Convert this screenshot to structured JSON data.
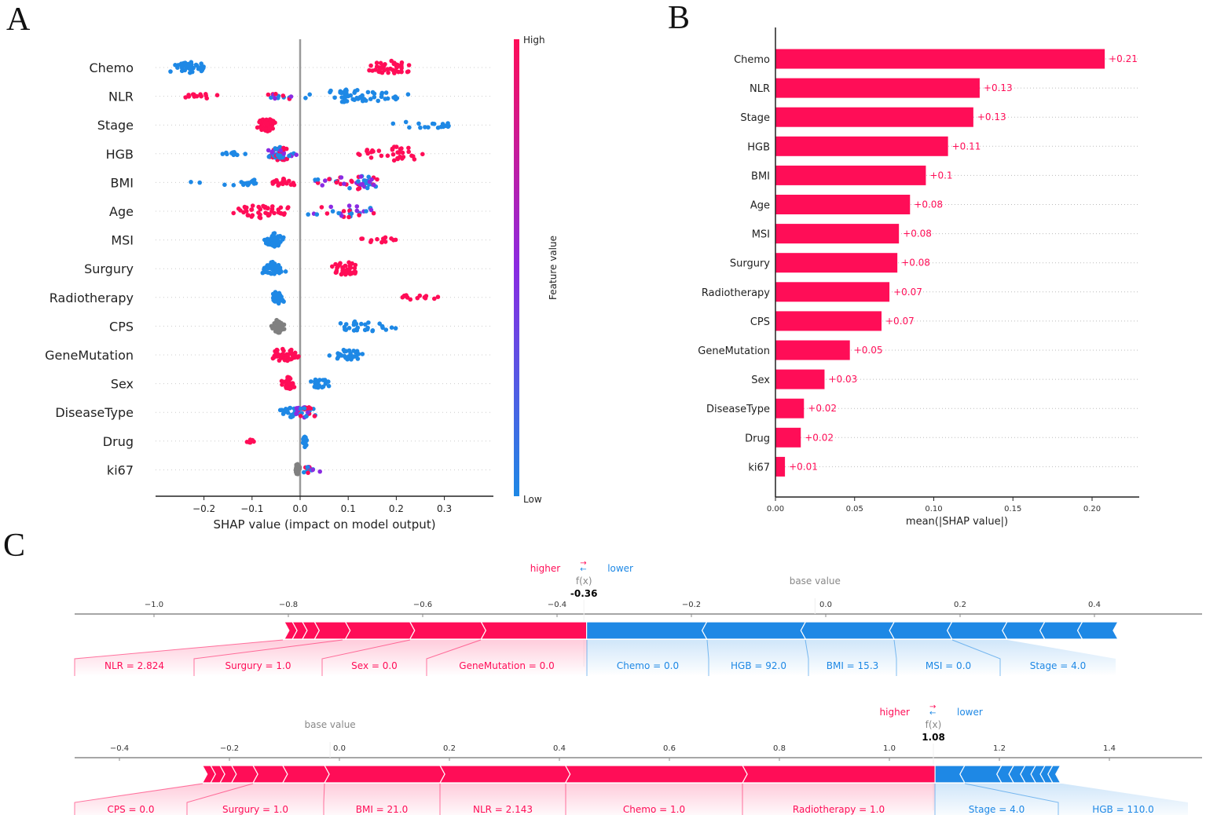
{
  "panels": {
    "a": "A",
    "b": "B",
    "c": "C"
  },
  "colors": {
    "high": "#ff0d57",
    "low": "#1e88e5",
    "mid": "#8a2be2",
    "neutral": "#808080"
  },
  "chart_data": [
    {
      "type": "scatter",
      "subtype": "shap-beeswarm",
      "xlabel": "SHAP value (impact on model output)",
      "xticks": [
        "−0.2",
        "−0.1",
        "0.0",
        "0.1",
        "0.2",
        "0.3"
      ],
      "xtick_values": [
        -0.2,
        -0.1,
        0.0,
        0.1,
        0.2,
        0.3
      ],
      "xlim": [
        -0.3,
        0.4
      ],
      "colorbar": {
        "label": "Feature value",
        "high": "High",
        "low": "Low"
      },
      "features": [
        {
          "name": "Chemo",
          "clusters": [
            {
              "range": [
                -0.27,
                -0.18
              ],
              "center": -0.24,
              "n": 40,
              "color": "low"
            },
            {
              "range": [
                0.14,
                0.23
              ],
              "center": 0.19,
              "n": 45,
              "color": "high"
            }
          ]
        },
        {
          "name": "NLR",
          "clusters": [
            {
              "range": [
                -0.27,
                -0.14
              ],
              "center": -0.22,
              "n": 14,
              "color": "high"
            },
            {
              "range": [
                -0.08,
                0.04
              ],
              "center": -0.03,
              "n": 16,
              "color": "mid"
            },
            {
              "range": [
                0.06,
                0.24
              ],
              "center": 0.1,
              "n": 55,
              "color": "low"
            }
          ]
        },
        {
          "name": "Stage",
          "clusters": [
            {
              "range": [
                -0.09,
                -0.05
              ],
              "center": -0.07,
              "n": 45,
              "color": "high"
            },
            {
              "range": [
                0.17,
                0.37
              ],
              "center": 0.25,
              "n": 18,
              "color": "low"
            }
          ]
        },
        {
          "name": "HGB",
          "clusters": [
            {
              "range": [
                -0.2,
                -0.1
              ],
              "center": -0.14,
              "n": 12,
              "color": "low"
            },
            {
              "range": [
                -0.07,
                0.0
              ],
              "center": -0.04,
              "n": 50,
              "color": "mid"
            },
            {
              "range": [
                0.08,
                0.26
              ],
              "center": 0.2,
              "n": 35,
              "color": "high"
            }
          ]
        },
        {
          "name": "BMI",
          "clusters": [
            {
              "range": [
                -0.24,
                -0.08
              ],
              "center": -0.12,
              "n": 16,
              "color": "low"
            },
            {
              "range": [
                -0.07,
                0.0
              ],
              "center": -0.03,
              "n": 20,
              "color": "high"
            },
            {
              "range": [
                0.02,
                0.17
              ],
              "center": 0.12,
              "n": 50,
              "color": "mid"
            }
          ]
        },
        {
          "name": "Age",
          "clusters": [
            {
              "range": [
                -0.14,
                0.0
              ],
              "center": -0.08,
              "n": 45,
              "color": "high"
            },
            {
              "range": [
                0.0,
                0.2
              ],
              "center": 0.1,
              "n": 30,
              "color": "mid"
            }
          ]
        },
        {
          "name": "MSI",
          "clusters": [
            {
              "range": [
                -0.08,
                -0.03
              ],
              "center": -0.055,
              "n": 45,
              "color": "low"
            },
            {
              "range": [
                0.12,
                0.22
              ],
              "center": 0.17,
              "n": 14,
              "color": "high"
            }
          ]
        },
        {
          "name": "Surgury",
          "clusters": [
            {
              "range": [
                -0.08,
                -0.03
              ],
              "center": -0.06,
              "n": 40,
              "color": "low"
            },
            {
              "range": [
                0.06,
                0.12
              ],
              "center": 0.095,
              "n": 40,
              "color": "high"
            }
          ]
        },
        {
          "name": "Radiotherapy",
          "clusters": [
            {
              "range": [
                -0.06,
                -0.03
              ],
              "center": -0.045,
              "n": 35,
              "color": "low"
            },
            {
              "range": [
                0.19,
                0.3
              ],
              "center": 0.23,
              "n": 14,
              "color": "high"
            }
          ]
        },
        {
          "name": "CPS",
          "clusters": [
            {
              "range": [
                -0.06,
                -0.03
              ],
              "center": -0.045,
              "n": 45,
              "color": "neutral"
            },
            {
              "range": [
                0.06,
                0.25
              ],
              "center": 0.12,
              "n": 30,
              "color": "low"
            }
          ]
        },
        {
          "name": "GeneMutation",
          "clusters": [
            {
              "range": [
                -0.06,
                0.0
              ],
              "center": -0.035,
              "n": 45,
              "color": "high"
            },
            {
              "range": [
                0.06,
                0.14
              ],
              "center": 0.1,
              "n": 28,
              "color": "low"
            }
          ]
        },
        {
          "name": "Sex",
          "clusters": [
            {
              "range": [
                -0.04,
                -0.01
              ],
              "center": -0.025,
              "n": 40,
              "color": "high"
            },
            {
              "range": [
                0.02,
                0.07
              ],
              "center": 0.04,
              "n": 25,
              "color": "low"
            }
          ]
        },
        {
          "name": "DiseaseType",
          "clusters": [
            {
              "range": [
                -0.06,
                0.0
              ],
              "center": -0.02,
              "n": 25,
              "color": "low"
            },
            {
              "range": [
                -0.02,
                0.04
              ],
              "center": 0.01,
              "n": 30,
              "color": "mid"
            }
          ]
        },
        {
          "name": "Drug",
          "clusters": [
            {
              "range": [
                -0.12,
                -0.09
              ],
              "center": -0.105,
              "n": 8,
              "color": "high"
            },
            {
              "range": [
                0.005,
                0.015
              ],
              "center": 0.01,
              "n": 30,
              "color": "low"
            }
          ]
        },
        {
          "name": "ki67",
          "clusters": [
            {
              "range": [
                -0.01,
                0.0
              ],
              "center": -0.005,
              "n": 35,
              "color": "neutral"
            },
            {
              "range": [
                0.0,
                0.05
              ],
              "center": 0.02,
              "n": 16,
              "color": "mid"
            }
          ]
        }
      ]
    },
    {
      "type": "bar",
      "orientation": "horizontal",
      "xlabel": "mean(|SHAP value|)",
      "xticks": [
        "0.00",
        "0.05",
        "0.10",
        "0.15",
        "0.20"
      ],
      "xtick_values": [
        0,
        0.05,
        0.1,
        0.15,
        0.2
      ],
      "xlim": [
        0,
        0.23
      ],
      "categories": [
        "Chemo",
        "NLR",
        "Stage",
        "HGB",
        "BMI",
        "Age",
        "MSI",
        "Surgury",
        "Radiotherapy",
        "CPS",
        "GeneMutation",
        "Sex",
        "DiseaseType",
        "Drug",
        "ki67"
      ],
      "values": [
        0.208,
        0.129,
        0.125,
        0.109,
        0.095,
        0.085,
        0.078,
        0.077,
        0.072,
        0.067,
        0.047,
        0.031,
        0.018,
        0.016,
        0.006
      ],
      "data_labels": [
        "+0.21",
        "+0.13",
        "+0.13",
        "+0.11",
        "+0.1",
        "+0.08",
        "+0.08",
        "+0.08",
        "+0.07",
        "+0.07",
        "+0.05",
        "+0.03",
        "+0.02",
        "+0.02",
        "+0.01"
      ]
    },
    {
      "type": "force",
      "higher": "higher",
      "lower": "lower",
      "fx_label": "f(x)",
      "fx": "-0.36",
      "fx_value": -0.36,
      "base_label": "base value",
      "base_value": -0.016,
      "xticks": [
        "−1.0",
        "−0.8",
        "−0.6",
        "−0.4",
        "−0.2",
        "0.0",
        "0.2",
        "0.4"
      ],
      "xtick_values": [
        -1.0,
        -0.8,
        -0.6,
        -0.4,
        -0.2,
        0.0,
        0.2,
        0.4
      ],
      "positive_boundaries": [
        -0.806,
        -0.794,
        -0.779,
        -0.761,
        -0.715,
        -0.619,
        -0.513,
        -0.356
      ],
      "negative_boundaries": [
        -0.356,
        -0.177,
        -0.03,
        0.102,
        0.188,
        0.27,
        0.326,
        0.382,
        0.435
      ],
      "labels": [
        {
          "text": "NLR = 2.824",
          "side": "higher"
        },
        {
          "text": "Surgury = 1.0",
          "side": "higher"
        },
        {
          "text": "Sex = 0.0",
          "side": "higher"
        },
        {
          "text": "GeneMutation = 0.0",
          "side": "higher"
        },
        {
          "text": "Chemo = 0.0",
          "side": "lower"
        },
        {
          "text": "HGB = 92.0",
          "side": "lower"
        },
        {
          "text": "BMI = 15.3",
          "side": "lower"
        },
        {
          "text": "MSI = 0.0",
          "side": "lower"
        },
        {
          "text": "Stage = 4.0",
          "side": "lower"
        }
      ]
    },
    {
      "type": "force",
      "higher": "higher",
      "lower": "lower",
      "fx_label": "f(x)",
      "fx": "1.08",
      "fx_value": 1.08,
      "base_label": "base value",
      "base_value": -0.017,
      "xticks": [
        "−0.4",
        "−0.2",
        "0.0",
        "0.2",
        "0.4",
        "0.6",
        "0.8",
        "1.0",
        "1.2",
        "1.4"
      ],
      "xtick_values": [
        -0.4,
        -0.2,
        0.0,
        0.2,
        0.4,
        0.6,
        0.8,
        1.0,
        1.2,
        1.4
      ],
      "positive_boundaries": [
        -0.249,
        -0.234,
        -0.217,
        -0.196,
        -0.157,
        -0.103,
        -0.027,
        0.183,
        0.411,
        0.733,
        1.083
      ],
      "negative_boundaries": [
        1.083,
        1.137,
        1.204,
        1.226,
        1.247,
        1.266,
        1.283,
        1.297,
        1.311
      ],
      "labels": [
        {
          "text": "CPS = 0.0",
          "side": "higher"
        },
        {
          "text": "Surgury = 1.0",
          "side": "higher"
        },
        {
          "text": "BMI = 21.0",
          "side": "higher"
        },
        {
          "text": "NLR = 2.143",
          "side": "higher"
        },
        {
          "text": "Chemo = 1.0",
          "side": "higher"
        },
        {
          "text": "Radiotherapy = 1.0",
          "side": "higher"
        },
        {
          "text": "Stage = 4.0",
          "side": "lower"
        },
        {
          "text": "HGB = 110.0",
          "side": "lower"
        }
      ]
    }
  ]
}
